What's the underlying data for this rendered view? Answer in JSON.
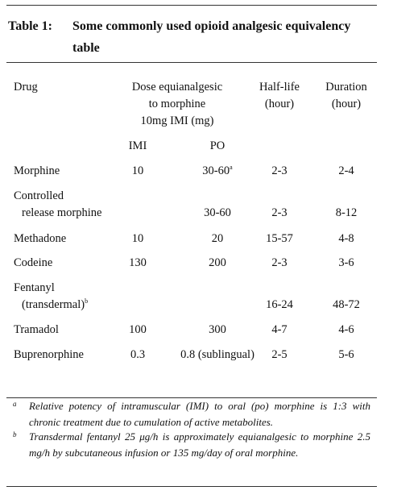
{
  "title": {
    "label": "Table 1:",
    "text": [
      "Some commonly used opioid analgesic equivalency",
      "table"
    ]
  },
  "table": {
    "header": {
      "drug": "Drug",
      "dose": [
        "Dose equianalgesic",
        "to morphine",
        "10mg IMI (mg)"
      ],
      "half_life": [
        "Half-life",
        "(hour)"
      ],
      "duration": [
        "Duration",
        "(hour)"
      ],
      "imi": "IMI",
      "po": "PO"
    },
    "rows": [
      {
        "drug": [
          "Morphine"
        ],
        "imi": "10",
        "po": "30-60",
        "po_note": "a",
        "half_life": "2-3",
        "duration": "2-4"
      },
      {
        "drug": [
          "Controlled",
          "release morphine"
        ],
        "po": "30-60",
        "half_life": "2-3",
        "duration": "8-12"
      },
      {
        "drug": [
          "Methadone"
        ],
        "imi": "10",
        "po": "20",
        "half_life": "15-57",
        "duration": "4-8"
      },
      {
        "drug": [
          "Codeine"
        ],
        "imi": "130",
        "po": "200",
        "half_life": "2-3",
        "duration": "3-6"
      },
      {
        "drug": [
          "Fentanyl",
          "(transdermal)"
        ],
        "drug_note": "b",
        "half_life": "16-24",
        "duration": "48-72"
      },
      {
        "drug": [
          "Tramadol"
        ],
        "imi": "100",
        "po": "300",
        "half_life": "4-7",
        "duration": "4-6"
      },
      {
        "drug": [
          "Buprenorphine"
        ],
        "imi": "0.3",
        "po": "0.8 (sublingual)",
        "half_life": "2-5",
        "duration": "5-6"
      }
    ]
  },
  "footnotes": [
    {
      "mark": "a",
      "text": "Relative potency of intramuscular (IMI) to oral (po) morphine is 1:3 with chronic treatment due to cumulation of active metabolites."
    },
    {
      "mark": "b",
      "text": "Transdermal fentanyl 25 μg/h is approximately equianalgesic to morphine 2.5 mg/h by subcutaneous infusion or 135 mg/day of oral morphine."
    }
  ]
}
